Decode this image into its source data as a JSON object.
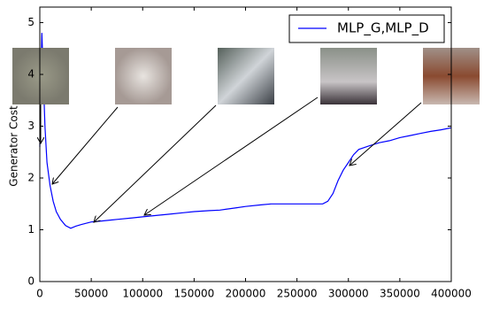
{
  "chart_data": {
    "type": "line",
    "ylabel": "Generator Cost",
    "x": [
      0,
      1000,
      2000,
      3000,
      5000,
      7000,
      10000,
      13000,
      16000,
      20000,
      25000,
      30000,
      35000,
      40000,
      50000,
      60000,
      75000,
      90000,
      100000,
      115000,
      125000,
      140000,
      150000,
      165000,
      175000,
      190000,
      200000,
      215000,
      225000,
      240000,
      250000,
      265000,
      275000,
      280000,
      285000,
      290000,
      295000,
      300000,
      305000,
      310000,
      320000,
      330000,
      340000,
      350000,
      360000,
      370000,
      380000,
      390000,
      400000
    ],
    "series": [
      {
        "name": "MLP_G,MLP_D",
        "color": "#0000ff",
        "values": [
          2.6,
          3.9,
          4.8,
          4.2,
          3.0,
          2.3,
          1.85,
          1.55,
          1.35,
          1.2,
          1.08,
          1.03,
          1.07,
          1.1,
          1.15,
          1.17,
          1.2,
          1.23,
          1.25,
          1.28,
          1.3,
          1.33,
          1.35,
          1.37,
          1.38,
          1.42,
          1.45,
          1.48,
          1.5,
          1.5,
          1.5,
          1.5,
          1.5,
          1.55,
          1.7,
          1.95,
          2.15,
          2.3,
          2.45,
          2.55,
          2.62,
          2.68,
          2.72,
          2.78,
          2.82,
          2.86,
          2.9,
          2.93,
          2.97
        ]
      }
    ],
    "xlim": [
      0,
      400000
    ],
    "ylim": [
      0,
      5.3
    ],
    "xticks": [
      0,
      50000,
      100000,
      150000,
      200000,
      250000,
      300000,
      350000,
      400000
    ],
    "yticks": [
      0,
      1,
      2,
      3,
      4,
      5
    ],
    "legend": "upper right",
    "grid": false
  }
}
